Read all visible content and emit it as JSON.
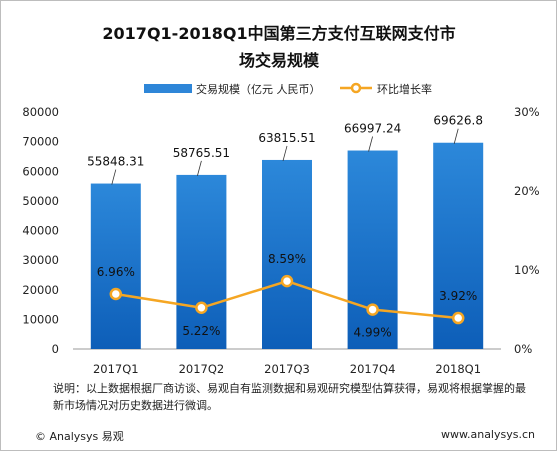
{
  "chart_data": {
    "type": "bar",
    "title_lines": [
      "2017Q1-2018Q1中国第三方支付互联网支付市",
      "场交易规模"
    ],
    "categories": [
      "2017Q1",
      "2017Q2",
      "2017Q3",
      "2017Q4",
      "2018Q1"
    ],
    "series": [
      {
        "name": "交易规模（亿元 人民币）",
        "type": "bar",
        "axis": "left",
        "values": [
          55848.31,
          58765.51,
          63815.51,
          66997.24,
          69626.8
        ],
        "labels": [
          "55848.31",
          "58765.51",
          "63815.51",
          "66997.24",
          "69626.8"
        ],
        "color": "#2e86d8"
      },
      {
        "name": "环比增长率",
        "type": "line",
        "axis": "right",
        "values": [
          6.96,
          5.22,
          8.59,
          4.99,
          3.92
        ],
        "labels": [
          "6.96%",
          "5.22%",
          "8.59%",
          "4.99%",
          "3.92%"
        ],
        "color": "#f5a623"
      }
    ],
    "y_left": {
      "range": [
        0,
        80000
      ],
      "ticks": [
        "0",
        "10000",
        "20000",
        "30000",
        "40000",
        "50000",
        "60000",
        "70000",
        "80000"
      ],
      "tick_values": [
        0,
        10000,
        20000,
        30000,
        40000,
        50000,
        60000,
        70000,
        80000
      ]
    },
    "y_right": {
      "range": [
        0,
        30
      ],
      "ticks": [
        "0%",
        "10%",
        "20%",
        "30%"
      ],
      "tick_values": [
        0,
        10,
        20,
        30
      ]
    },
    "grid": false,
    "legend_position": "top"
  },
  "note": "说明：以上数据根据厂商访谈、易观自有监测数据和易观研究模型估算获得，易观将根据掌握的最新市场情况对历史数据进行微调。",
  "footer": {
    "left": "© Analysys 易观",
    "right": "www.analysys.cn"
  }
}
